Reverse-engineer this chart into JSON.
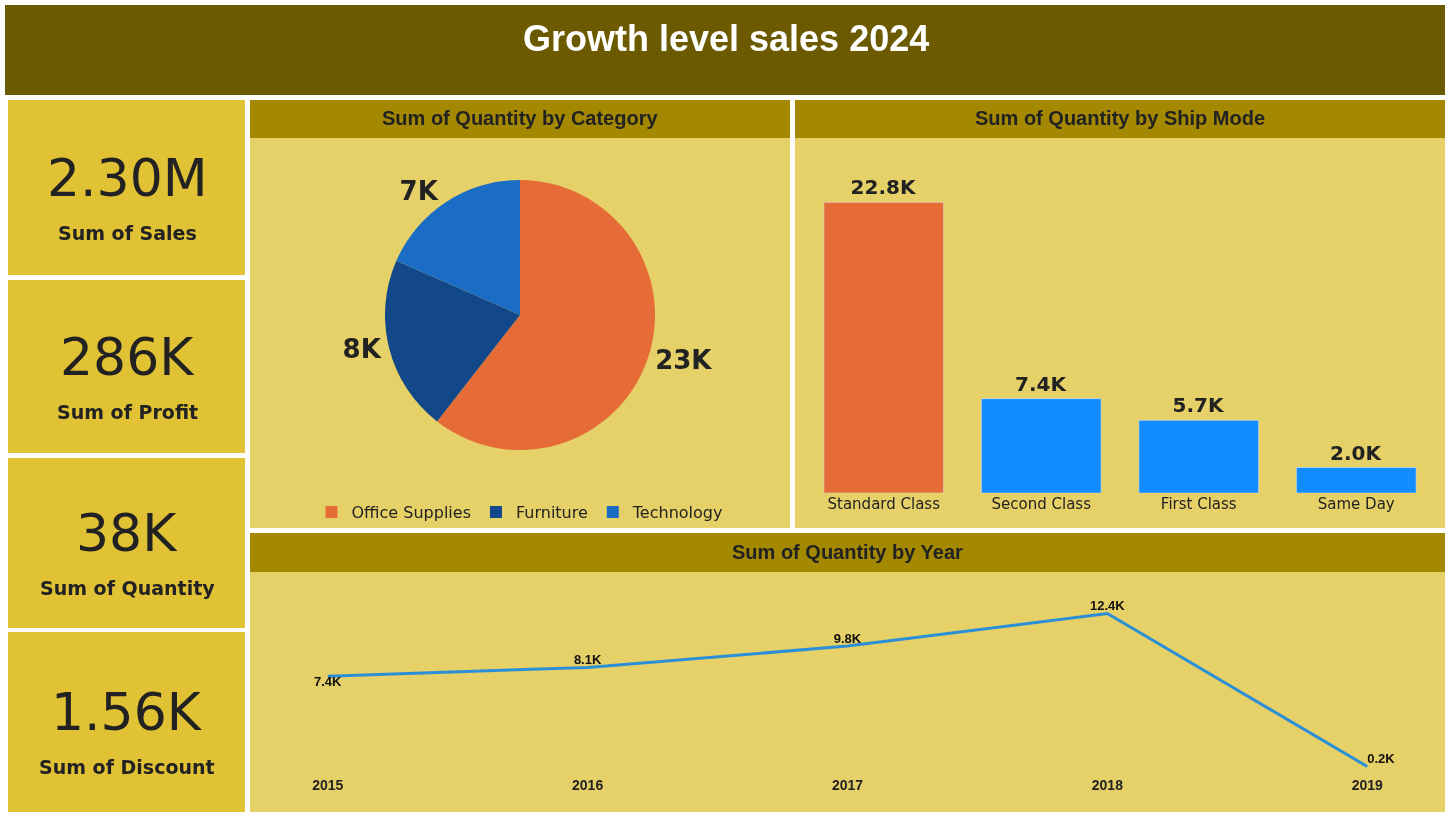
{
  "chart_data": [
    {
      "type": "other",
      "title": "Growth level sales 2024",
      "annotations": [
        "2.30M",
        "Sum of Sales",
        "286K",
        "Sum of Profit",
        "38K",
        "Sum of Quantity",
        "1.56K",
        "Sum of Discount"
      ]
    },
    {
      "type": "pie",
      "title": "Sum of Quantity by Category",
      "categories": [
        "Office Supplies",
        "Furniture",
        "Technology"
      ],
      "values": [
        23000,
        8000,
        7000
      ],
      "value_labels": [
        "23K",
        "8K",
        "7K"
      ],
      "colors": [
        "#e66c37",
        "#12488a",
        "#1a6cc4"
      ],
      "legend": "bottom"
    },
    {
      "type": "bar",
      "title": "Sum of Quantity by Ship Mode",
      "categories": [
        "Standard Class",
        "Second Class",
        "First Class",
        "Same Day"
      ],
      "values": [
        22800,
        7400,
        5700,
        2000
      ],
      "value_labels": [
        "22.8K",
        "7.4K",
        "5.7K",
        "2.0K"
      ],
      "colors": [
        "#e66c37",
        "#118dff",
        "#118dff",
        "#118dff"
      ],
      "tick_labels": "x",
      "grid": false
    },
    {
      "type": "line",
      "title": "Sum of Quantity by Year",
      "categories": [
        "2015",
        "2016",
        "2017",
        "2018",
        "2019"
      ],
      "values": [
        7400,
        8100,
        9800,
        12400,
        200
      ],
      "value_labels": [
        "7.4K",
        "8.1K",
        "9.8K",
        "12.4K",
        "0.2K"
      ],
      "color": "#2b8fd8",
      "marker": "none",
      "tick_labels": "x",
      "grid": false
    }
  ]
}
